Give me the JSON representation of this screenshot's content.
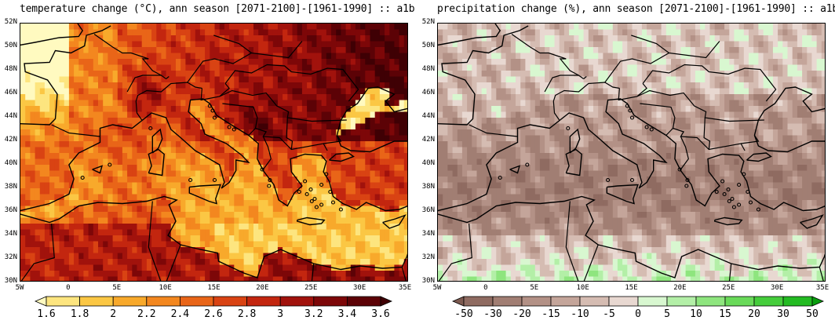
{
  "panels": [
    {
      "title": "temperature change (°C), ann season [2071-2100]-[1961-1990] :: a1b",
      "field": "temperature",
      "lat_labels": [
        "52N",
        "50N",
        "48N",
        "46N",
        "44N",
        "42N",
        "40N",
        "38N",
        "36N",
        "34N",
        "32N",
        "30N"
      ],
      "lon_labels": [
        "5W",
        "0",
        "5E",
        "10E",
        "15E",
        "20E",
        "25E",
        "30E",
        "35E"
      ],
      "colorbar": {
        "ticks": [
          "1.6",
          "1.8",
          "2",
          "2.2",
          "2.4",
          "2.6",
          "2.8",
          "3",
          "3.2",
          "3.4",
          "3.6"
        ],
        "colors": [
          "#fffac0",
          "#fde57f",
          "#fbc744",
          "#f8a92b",
          "#f3871f",
          "#e96518",
          "#d94313",
          "#c3260f",
          "#a1120c",
          "#7d0708",
          "#5c0206",
          "#3f0004"
        ]
      }
    },
    {
      "title": "precipitation change (%), ann season [2071-2100]-[1961-1990] :: a1b",
      "field": "precipitation",
      "lat_labels": [
        "52N",
        "50N",
        "48N",
        "46N",
        "44N",
        "42N",
        "40N",
        "38N",
        "36N",
        "34N",
        "32N",
        "30N"
      ],
      "lon_labels": [
        "5W",
        "0",
        "5E",
        "10E",
        "15E",
        "20E",
        "25E",
        "30E",
        "35E"
      ],
      "colorbar": {
        "ticks": [
          "-50",
          "-30",
          "-20",
          "-15",
          "-10",
          "-5",
          "0",
          "5",
          "10",
          "15",
          "20",
          "30",
          "50"
        ],
        "colors": [
          "#7d5a50",
          "#8f6b61",
          "#a17e73",
          "#b39186",
          "#c4a59a",
          "#d5bcb2",
          "#e8d8d1",
          "#d8f7d0",
          "#b3efa7",
          "#8ee57e",
          "#69da59",
          "#45cd3b",
          "#23bb22",
          "#0a9e0f"
        ]
      }
    }
  ]
}
